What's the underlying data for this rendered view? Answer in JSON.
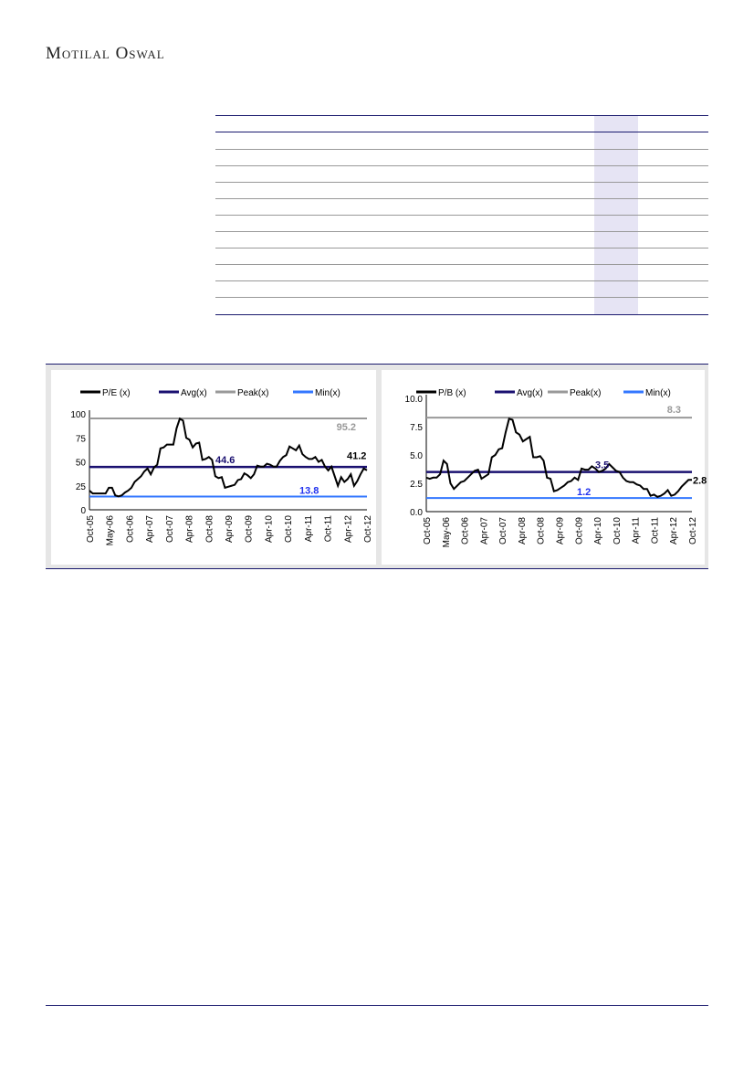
{
  "header": {
    "brand": "Motilal Oswal"
  },
  "chart_data": [
    {
      "type": "line",
      "title": "",
      "ylim": [
        0,
        100
      ],
      "yticks": [
        "0",
        "25",
        "50",
        "75",
        "100"
      ],
      "x_labels": [
        "Oct-05",
        "May-06",
        "Oct-06",
        "Apr-07",
        "Oct-07",
        "Apr-08",
        "Oct-08",
        "Apr-09",
        "Oct-09",
        "Apr-10",
        "Oct-10",
        "Apr-11",
        "Oct-11",
        "Apr-12",
        "Oct-12"
      ],
      "legend": [
        "P/E (x)",
        "Avg(x)",
        "Peak(x)",
        "Min(x)"
      ],
      "series": [
        {
          "name": "P/E (x)",
          "values": [
            20,
            17,
            17,
            17,
            17,
            17,
            23,
            23,
            15,
            14,
            15,
            18,
            20,
            23,
            29,
            32,
            35,
            40,
            43,
            37,
            44,
            47,
            64,
            65,
            68,
            68,
            68,
            85,
            95,
            93,
            75,
            73,
            65,
            69,
            70,
            52,
            53,
            55,
            52,
            35,
            33,
            34,
            23,
            24,
            25,
            26,
            31,
            32,
            38,
            36,
            33,
            37,
            46,
            45,
            45,
            48,
            47,
            45,
            45,
            51,
            55,
            57,
            66,
            64,
            62,
            67,
            58,
            55,
            53,
            53,
            55,
            50,
            52,
            45,
            41,
            45,
            35,
            25,
            34,
            29,
            32,
            37,
            25,
            30,
            37,
            43,
            41.2
          ]
        }
      ],
      "avg": 44.6,
      "peak": 95.2,
      "min": 13.8,
      "labels": {
        "avg": "44.6",
        "peak": "95.2",
        "min": "13.8",
        "last": "41.2"
      }
    },
    {
      "type": "line",
      "title": "",
      "ylim": [
        0,
        10
      ],
      "yticks": [
        "0.0",
        "2.5",
        "5.0",
        "7.5",
        "10.0"
      ],
      "x_labels": [
        "Oct-05",
        "May-06",
        "Oct-06",
        "Apr-07",
        "Oct-07",
        "Apr-08",
        "Oct-08",
        "Apr-09",
        "Oct-09",
        "Apr-10",
        "Oct-10",
        "Apr-11",
        "Oct-11",
        "Apr-12",
        "Oct-12"
      ],
      "legend": [
        "P/B (x)",
        "Avg(x)",
        "Peak(x)",
        "Min(x)"
      ],
      "series": [
        {
          "name": "P/B (x)",
          "values": [
            3.0,
            2.9,
            3.0,
            3.0,
            3.3,
            4.5,
            4.2,
            2.5,
            2.0,
            2.3,
            2.6,
            2.7,
            3.0,
            3.3,
            3.6,
            3.7,
            2.9,
            3.1,
            3.3,
            4.8,
            5.0,
            5.5,
            5.6,
            7.0,
            8.2,
            8.1,
            7.0,
            6.8,
            6.2,
            6.4,
            6.6,
            4.8,
            4.8,
            4.9,
            4.5,
            3.0,
            2.9,
            1.8,
            1.9,
            2.1,
            2.3,
            2.6,
            2.7,
            3.0,
            2.8,
            3.8,
            3.7,
            3.7,
            4.0,
            3.8,
            3.5,
            3.6,
            3.8,
            4.2,
            3.9,
            3.6,
            3.5,
            3.0,
            2.7,
            2.6,
            2.6,
            2.4,
            2.3,
            2.0,
            2.0,
            1.4,
            1.5,
            1.3,
            1.4,
            1.6,
            1.9,
            1.4,
            1.5,
            1.8,
            2.2,
            2.5,
            2.8,
            2.8
          ]
        }
      ],
      "avg": 3.5,
      "peak": 8.3,
      "min": 1.2,
      "labels": {
        "avg": "3.5",
        "peak": "8.3",
        "min": "1.2",
        "last": "2.8"
      }
    }
  ]
}
